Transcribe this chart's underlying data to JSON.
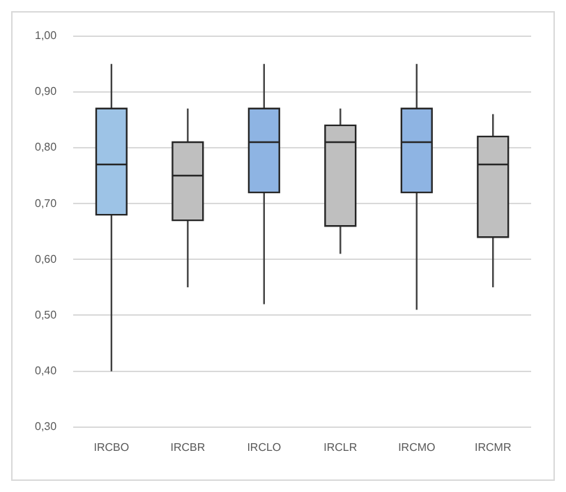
{
  "chart_data": {
    "type": "box",
    "categories": [
      "IRCBO",
      "IRCBR",
      "IRCLO",
      "IRCLR",
      "IRCMO",
      "IRCMR"
    ],
    "boxes": [
      {
        "low": 0.4,
        "q1": 0.68,
        "median": 0.77,
        "q3": 0.87,
        "high": 0.95
      },
      {
        "low": 0.55,
        "q1": 0.67,
        "median": 0.75,
        "q3": 0.81,
        "high": 0.87
      },
      {
        "low": 0.52,
        "q1": 0.72,
        "median": 0.81,
        "q3": 0.87,
        "high": 0.95
      },
      {
        "low": 0.61,
        "q1": 0.66,
        "median": 0.81,
        "q3": 0.84,
        "high": 0.87
      },
      {
        "low": 0.51,
        "q1": 0.72,
        "median": 0.81,
        "q3": 0.87,
        "high": 0.95
      },
      {
        "low": 0.55,
        "q1": 0.64,
        "median": 0.77,
        "q3": 0.82,
        "high": 0.86
      }
    ],
    "colors": [
      "#9dc3e6",
      "#bfbfbf",
      "#8eb4e3",
      "#bfbfbf",
      "#8eb4e3",
      "#bfbfbf"
    ],
    "ylim": [
      0.3,
      1.0
    ],
    "yticks": [
      {
        "value": 0.3,
        "label": "0,30"
      },
      {
        "value": 0.4,
        "label": "0,40"
      },
      {
        "value": 0.5,
        "label": "0,50"
      },
      {
        "value": 0.6,
        "label": "0,60"
      },
      {
        "value": 0.7,
        "label": "0,70"
      },
      {
        "value": 0.8,
        "label": "0,80"
      },
      {
        "value": 0.9,
        "label": "0,90"
      },
      {
        "value": 1.0,
        "label": "1,00"
      }
    ],
    "grid": "y",
    "legend": false
  }
}
